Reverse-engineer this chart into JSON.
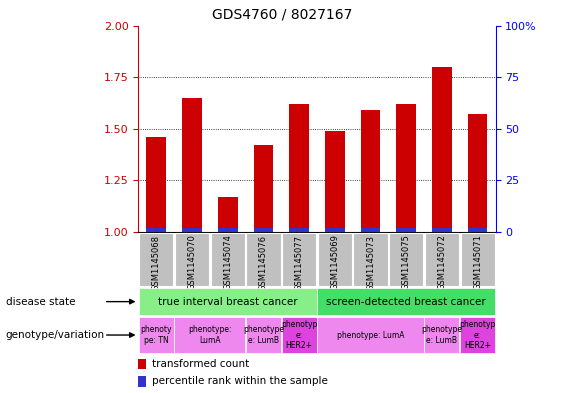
{
  "title": "GDS4760 / 8027167",
  "samples": [
    "GSM1145068",
    "GSM1145070",
    "GSM1145074",
    "GSM1145076",
    "GSM1145077",
    "GSM1145069",
    "GSM1145073",
    "GSM1145075",
    "GSM1145072",
    "GSM1145071"
  ],
  "transformed_count": [
    1.46,
    1.65,
    1.17,
    1.42,
    1.62,
    1.49,
    1.59,
    1.62,
    1.8,
    1.57
  ],
  "ylim": [
    1.0,
    2.0
  ],
  "y2lim": [
    0,
    100
  ],
  "yticks": [
    1.0,
    1.25,
    1.5,
    1.75,
    2.0
  ],
  "y2ticks": [
    0,
    25,
    50,
    75,
    100
  ],
  "y2ticklabels": [
    "0",
    "25",
    "50",
    "75",
    "100%"
  ],
  "bar_color_red": "#cc0000",
  "bar_color_blue": "#3333cc",
  "disease_state_row": [
    {
      "label": "true interval breast cancer",
      "start": 0,
      "end": 4,
      "color": "#88ee88"
    },
    {
      "label": "screen-detected breast cancer",
      "start": 5,
      "end": 9,
      "color": "#44dd66"
    }
  ],
  "genotype_row": [
    {
      "label": "phenoty\npe: TN",
      "start": 0,
      "end": 0,
      "color": "#ee88ee"
    },
    {
      "label": "phenotype:\nLumA",
      "start": 1,
      "end": 2,
      "color": "#ee88ee"
    },
    {
      "label": "phenotype\ne: LumB",
      "start": 3,
      "end": 3,
      "color": "#ee88ee"
    },
    {
      "label": "phenotyp\ne:\nHER2+",
      "start": 4,
      "end": 4,
      "color": "#dd44dd"
    },
    {
      "label": "phenotype: LumA",
      "start": 5,
      "end": 7,
      "color": "#ee88ee"
    },
    {
      "label": "phenotype\ne: LumB",
      "start": 8,
      "end": 8,
      "color": "#ee88ee"
    },
    {
      "label": "phenotyp\ne:\nHER2+",
      "start": 9,
      "end": 9,
      "color": "#dd44dd"
    }
  ],
  "sample_bg_color": "#c0c0c0",
  "chart_bg_color": "#ffffff",
  "left_label_disease": "disease state",
  "left_label_geno": "genotype/variation",
  "legend_red_label": "transformed count",
  "legend_blue_label": "percentile rank within the sample"
}
